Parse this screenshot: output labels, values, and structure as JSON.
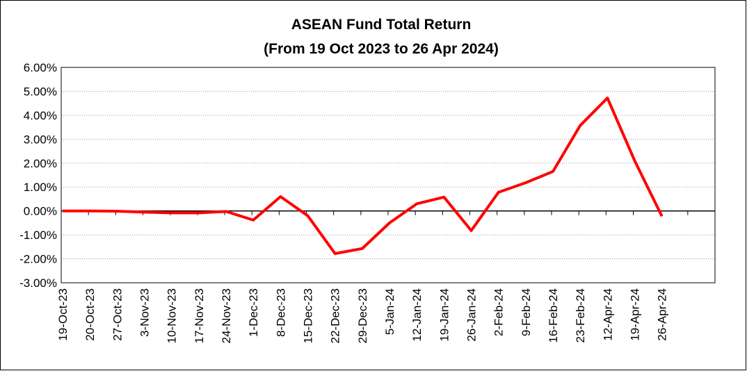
{
  "chart_data": {
    "type": "line",
    "title": "ASEAN Fund Total Return",
    "subtitle": "(From 19 Oct 2023 to 26 Apr 2024)",
    "categories": [
      "19-Oct-23",
      "20-Oct-23",
      "27-Oct-23",
      "3-Nov-23",
      "10-Nov-23",
      "17-Nov-23",
      "24-Nov-23",
      "1-Dec-23",
      "8-Dec-23",
      "15-Dec-23",
      "22-Dec-23",
      "29-Dec-23",
      "5-Jan-24",
      "12-Jan-24",
      "19-Jan-24",
      "26-Jan-24",
      "2-Feb-24",
      "9-Feb-24",
      "16-Feb-24",
      "23-Feb-24",
      "12-Apr-24",
      "19-Apr-24",
      "26-Apr-24"
    ],
    "series": [
      {
        "name": "ASEAN Fund",
        "color": "#ff0000",
        "values": [
          0.0,
          0.0,
          -0.01,
          -0.05,
          -0.08,
          -0.08,
          -0.02,
          -0.38,
          0.6,
          -0.2,
          -1.78,
          -1.57,
          -0.5,
          0.3,
          0.58,
          -0.82,
          0.78,
          1.18,
          1.65,
          3.57,
          4.72,
          2.1,
          -0.22
        ]
      }
    ],
    "ylim": [
      -3,
      6
    ],
    "yticks": [
      {
        "value": -3,
        "label": "-3.00%"
      },
      {
        "value": -2,
        "label": "-2.00%"
      },
      {
        "value": -1,
        "label": "-1.00%"
      },
      {
        "value": 0,
        "label": "0.00%"
      },
      {
        "value": 1,
        "label": "1.00%"
      },
      {
        "value": 2,
        "label": "2.00%"
      },
      {
        "value": 3,
        "label": "3.00%"
      },
      {
        "value": 4,
        "label": "4.00%"
      },
      {
        "value": 5,
        "label": "5.00%"
      },
      {
        "value": 6,
        "label": "6.00%"
      }
    ],
    "grid": true
  }
}
